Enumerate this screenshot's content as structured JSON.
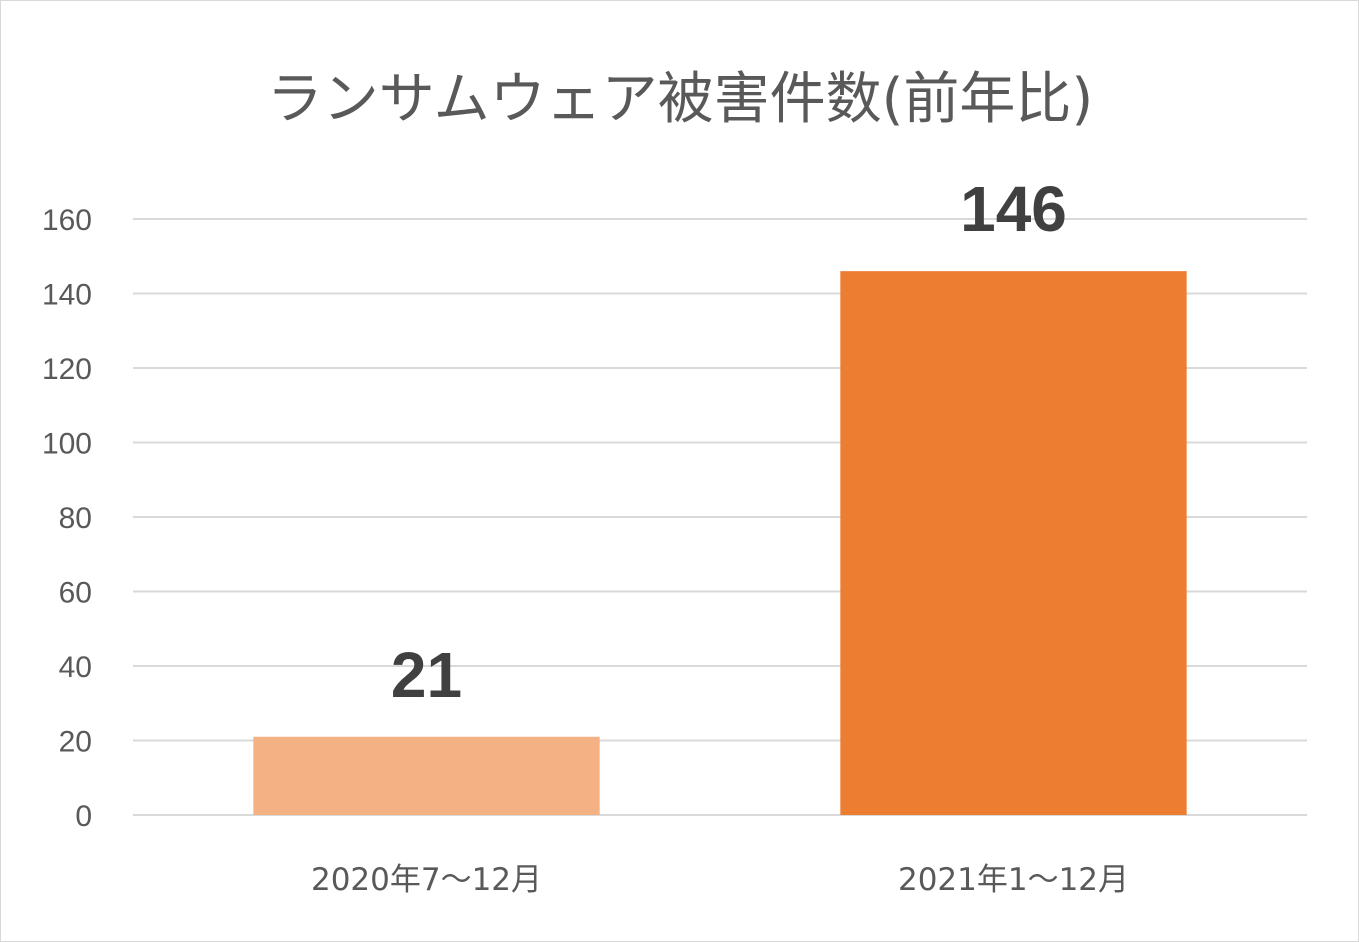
{
  "chart_data": {
    "type": "bar",
    "title": "ランサムウェア被害件数(前年比)",
    "categories": [
      "2020年7～12月",
      "2021年1～12月"
    ],
    "values": [
      21,
      146
    ],
    "data_labels": [
      "21",
      "146"
    ],
    "yticks": [
      "0",
      "20",
      "40",
      "60",
      "80",
      "100",
      "120",
      "140",
      "160"
    ],
    "ylim": [
      0,
      160
    ],
    "grid": true,
    "legend": "none",
    "colors": [
      "#f4b183",
      "#ed7d31"
    ]
  }
}
